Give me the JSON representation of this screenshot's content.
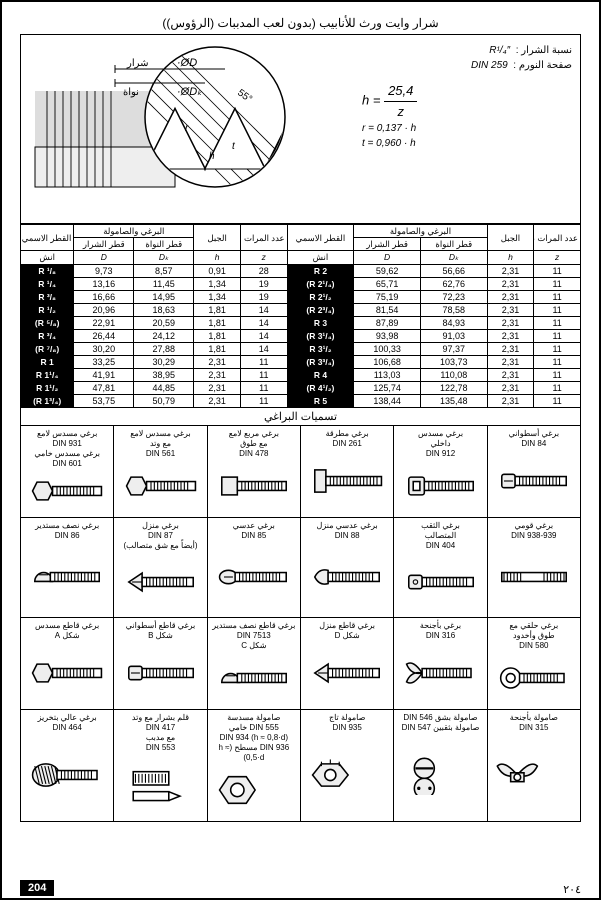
{
  "title": "شرار وايت ورث للأنابيب (بدون لعب المدببات (الرؤوس))",
  "formulae": {
    "line1a": "نسبة الشرار :",
    "line1b": "R¹/₄″",
    "line2a": "صفحة النورم :",
    "line2b": "DIN 259",
    "h": "h = 25,4 / z",
    "r": "r = 0,137 · h",
    "t": "t = 0,960 · h"
  },
  "diagram_labels": {
    "phiD": "·ØD",
    "phiDk": "·ØDₖ",
    "sharar": "شرار",
    "nawat": "نواة",
    "angle": "55°"
  },
  "table": {
    "headers": {
      "nominal": "القطر الاسمي",
      "screw_nut": "البرغي والصامولة",
      "pitch": "الجبل",
      "turns": "عدد المرات على 1″",
      "inch": "انش",
      "d_sharar": "قطر الشرار",
      "d_nawat": "قطر النواة",
      "D": "D",
      "Dk": "Dₖ",
      "h": "h",
      "z": "z"
    },
    "left": [
      {
        "n": "R ¹/₈",
        "D": "9,73",
        "Dk": "8,57",
        "h": "0,91",
        "z": "28"
      },
      {
        "n": "R ¹/₄",
        "D": "13,16",
        "Dk": "11,45",
        "h": "1,34",
        "z": "19"
      },
      {
        "n": "R ³/₈",
        "D": "16,66",
        "Dk": "14,95",
        "h": "1,34",
        "z": "19"
      },
      {
        "n": "R ¹/₂",
        "D": "20,96",
        "Dk": "18,63",
        "h": "1,81",
        "z": "14"
      },
      {
        "n": "(R ⁵/₈)",
        "D": "22,91",
        "Dk": "20,59",
        "h": "1,81",
        "z": "14"
      },
      {
        "n": "R ³/₄",
        "D": "26,44",
        "Dk": "24,12",
        "h": "1,81",
        "z": "14"
      },
      {
        "n": "(R ⁷/₈)",
        "D": "30,20",
        "Dk": "27,88",
        "h": "1,81",
        "z": "14"
      },
      {
        "n": "R 1",
        "D": "33,25",
        "Dk": "30,29",
        "h": "2,31",
        "z": "11"
      },
      {
        "n": "R 1¹/₄",
        "D": "41,91",
        "Dk": "38,95",
        "h": "2,31",
        "z": "11"
      },
      {
        "n": "R 1¹/₂",
        "D": "47,81",
        "Dk": "44,85",
        "h": "2,31",
        "z": "11"
      },
      {
        "n": "(R 1³/₄)",
        "D": "53,75",
        "Dk": "50,79",
        "h": "2,31",
        "z": "11"
      }
    ],
    "right": [
      {
        "n": "R 2",
        "D": "59,62",
        "Dk": "56,66",
        "h": "2,31",
        "z": "11"
      },
      {
        "n": "(R 2¹/₄)",
        "D": "65,71",
        "Dk": "62,76",
        "h": "2,31",
        "z": "11"
      },
      {
        "n": "R 2¹/₂",
        "D": "75,19",
        "Dk": "72,23",
        "h": "2,31",
        "z": "11"
      },
      {
        "n": "(R 2³/₄)",
        "D": "81,54",
        "Dk": "78,58",
        "h": "2,31",
        "z": "11"
      },
      {
        "n": "R 3",
        "D": "87,89",
        "Dk": "84,93",
        "h": "2,31",
        "z": "11"
      },
      {
        "n": "(R 3¹/₄)",
        "D": "93,98",
        "Dk": "91,03",
        "h": "2,31",
        "z": "11"
      },
      {
        "n": "R 3¹/₂",
        "D": "100,33",
        "Dk": "97,37",
        "h": "2,31",
        "z": "11"
      },
      {
        "n": "(R 3³/₄)",
        "D": "106,68",
        "Dk": "103,73",
        "h": "2,31",
        "z": "11"
      },
      {
        "n": "R 4",
        "D": "113,03",
        "Dk": "110,08",
        "h": "2,31",
        "z": "11"
      },
      {
        "n": "(R 4¹/₂)",
        "D": "125,74",
        "Dk": "122,78",
        "h": "2,31",
        "z": "11"
      },
      {
        "n": "R 5",
        "D": "138,44",
        "Dk": "135,48",
        "h": "2,31",
        "z": "11"
      }
    ]
  },
  "subtitle": "تسميات البراغي",
  "bolts": {
    "row1": [
      {
        "l1": "برغي مسدس لامع",
        "l2": "DIN 931",
        "l3": "برغي مسدس خامي",
        "l4": "DIN 601",
        "shape": "hex"
      },
      {
        "l1": "برغي مسدس لامع",
        "l2": "مع وتد",
        "l3": "DIN 561",
        "shape": "hex"
      },
      {
        "l1": "برغي مربع لامع",
        "l2": "مع طوق",
        "l3": "DIN 478",
        "shape": "square"
      },
      {
        "l1": "برغي مطرقة",
        "l2": "",
        "l3": "DIN 261",
        "shape": "hammer"
      },
      {
        "l1": "برغي مسدس",
        "l2": "داخلي",
        "l3": "DIN 912",
        "shape": "allen"
      },
      {
        "l1": "برغي أسطواني",
        "l2": "",
        "l3": "DIN 84",
        "shape": "cyl"
      }
    ],
    "row2": [
      {
        "l1": "برغي نصف مستدير",
        "l2": "DIN 86",
        "shape": "round"
      },
      {
        "l1": "برغي منزل",
        "l2": "DIN 87",
        "l3": "(أيضاً مع شق متصالب)",
        "shape": "flat"
      },
      {
        "l1": "برغي عدسي",
        "l2": "DIN 85",
        "shape": "lens"
      },
      {
        "l1": "برغي عدسي منزل",
        "l2": "",
        "l3": "DIN 88",
        "shape": "ovalflat"
      },
      {
        "l1": "برغي الثقب",
        "l2": "المتصالب",
        "l3": "DIN 404",
        "shape": "cross"
      },
      {
        "l1": "برغي قومي",
        "l2": "",
        "l3": "DIN 938-939",
        "shape": "stud"
      }
    ],
    "row3": [
      {
        "l1": "برغي قاطع مسدس",
        "l2": "",
        "l3": "شكل A",
        "shape": "hex"
      },
      {
        "l1": "برغي قاطع أسطواني",
        "l2": "",
        "l3": "شكل B",
        "shape": "cyl"
      },
      {
        "l1": "برغي قاطع نصف مستدير",
        "l2": "DIN 7513",
        "l3": "شكل C",
        "shape": "round"
      },
      {
        "l1": "برغي قاطع منزل",
        "l2": "",
        "l3": "شكل D",
        "shape": "flat"
      },
      {
        "l1": "برغي بأجنحة",
        "l2": "",
        "l3": "DIN 316",
        "shape": "wing"
      },
      {
        "l1": "برغي حلقي مع",
        "l2": "طوق وأخدود",
        "l3": "DIN 580",
        "shape": "eye"
      }
    ],
    "row4": [
      {
        "l1": "برغي عالي بتخريز",
        "l2": "DIN 464",
        "shape": "knurl"
      },
      {
        "l1": "قلم بشرار مع وتد",
        "l2": "DIN 417",
        "l3": "مع مدبب",
        "l4": "DIN 553",
        "shape": "set"
      },
      {
        "l1": "صامولة مسدسة",
        "l2": "DIN 555 خامي",
        "l3": "DIN 934  (h ≈ 0,8·d)",
        "l4": "DIN 936 مسطح  (h ≈ 0,5·d)",
        "shape": "nut"
      },
      {
        "l1": "صامولة تاج",
        "l2": "DIN 935",
        "shape": "castle"
      },
      {
        "l1": "صامولة بشق DIN 546",
        "l2": "صامولة بثقبين DIN 547",
        "shape": "slot"
      },
      {
        "l1": "صامولة بأجنحة",
        "l2": "",
        "l3": "DIN 315",
        "shape": "wingnut"
      }
    ]
  },
  "pagenum_left": "204",
  "pagenum_right": "٢٠٤"
}
